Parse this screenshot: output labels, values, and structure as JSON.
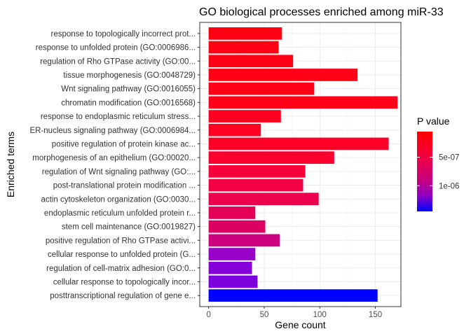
{
  "chart_data": {
    "type": "bar",
    "orientation": "horizontal",
    "title": "GO biological processes enriched among miR-33",
    "xlabel": "Gene count",
    "ylabel": "Enriched terms",
    "xlim": [
      -8,
      173
    ],
    "xticks": [
      0,
      50,
      100,
      150
    ],
    "grid": true,
    "legend_placement": "right",
    "color_scale": {
      "title": "P value",
      "low_color": "#ff0000",
      "high_color": "#0000ff",
      "min": 5e-08,
      "max": 1.45e-06,
      "ticks": [
        {
          "value": 5e-07,
          "label": "5e-07"
        },
        {
          "value": 1e-06,
          "label": "1e-06"
        }
      ]
    },
    "categories": [
      "response to topologically incorrect prot...",
      "response to unfolded protein (GO:0006986...",
      "regulation of Rho GTPase activity (GO:00...",
      "tissue morphogenesis (GO:0048729)",
      "Wnt signaling pathway (GO:0016055)",
      "chromatin modification (GO:0016568)",
      "response to endoplasmic reticulum stress...",
      "ER-nucleus signaling pathway (GO:0006984...",
      "positive regulation of protein kinase ac...",
      "morphogenesis of an epithelium (GO:00020...",
      "regulation of Wnt signaling pathway (GO:...",
      "post-translational protein modification ...",
      "actin cytoskeleton organization (GO:0030...",
      "endoplasmic reticulum unfolded protein r...",
      "stem cell maintenance (GO:0019827)",
      "positive regulation of Rho GTPase activi...",
      "cellular response to unfolded protein (G...",
      "regulation of cell-matrix adhesion (GO:0...",
      "cellular response to topologically incor...",
      "posttranscriptional regulation of gene e..."
    ],
    "series": [
      {
        "values": [
          66,
          63,
          76,
          134,
          95,
          170,
          65,
          47,
          162,
          113,
          87,
          85,
          99,
          42,
          51,
          64,
          42,
          39,
          44,
          152
        ],
        "p_values": [
          5e-08,
          6e-08,
          8e-08,
          1e-07,
          1.2e-07,
          1.5e-07,
          1.8e-07,
          2e-07,
          2.3e-07,
          2.8e-07,
          3.5e-07,
          4e-07,
          4.5e-07,
          5e-07,
          5.5e-07,
          7e-07,
          1.05e-06,
          1.12e-06,
          1.15e-06,
          1.45e-06
        ],
        "colors": [
          "#ff0012",
          "#ff0014",
          "#ff0015",
          "#ff0017",
          "#ff0018",
          "#ff001b",
          "#fe001f",
          "#fd0023",
          "#fc0027",
          "#f9002f",
          "#f50039",
          "#f20042",
          "#ea004d",
          "#e40056",
          "#dd0063",
          "#cd007f",
          "#9600c7",
          "#8400d6",
          "#7c00de",
          "#0000ff"
        ]
      }
    ]
  }
}
